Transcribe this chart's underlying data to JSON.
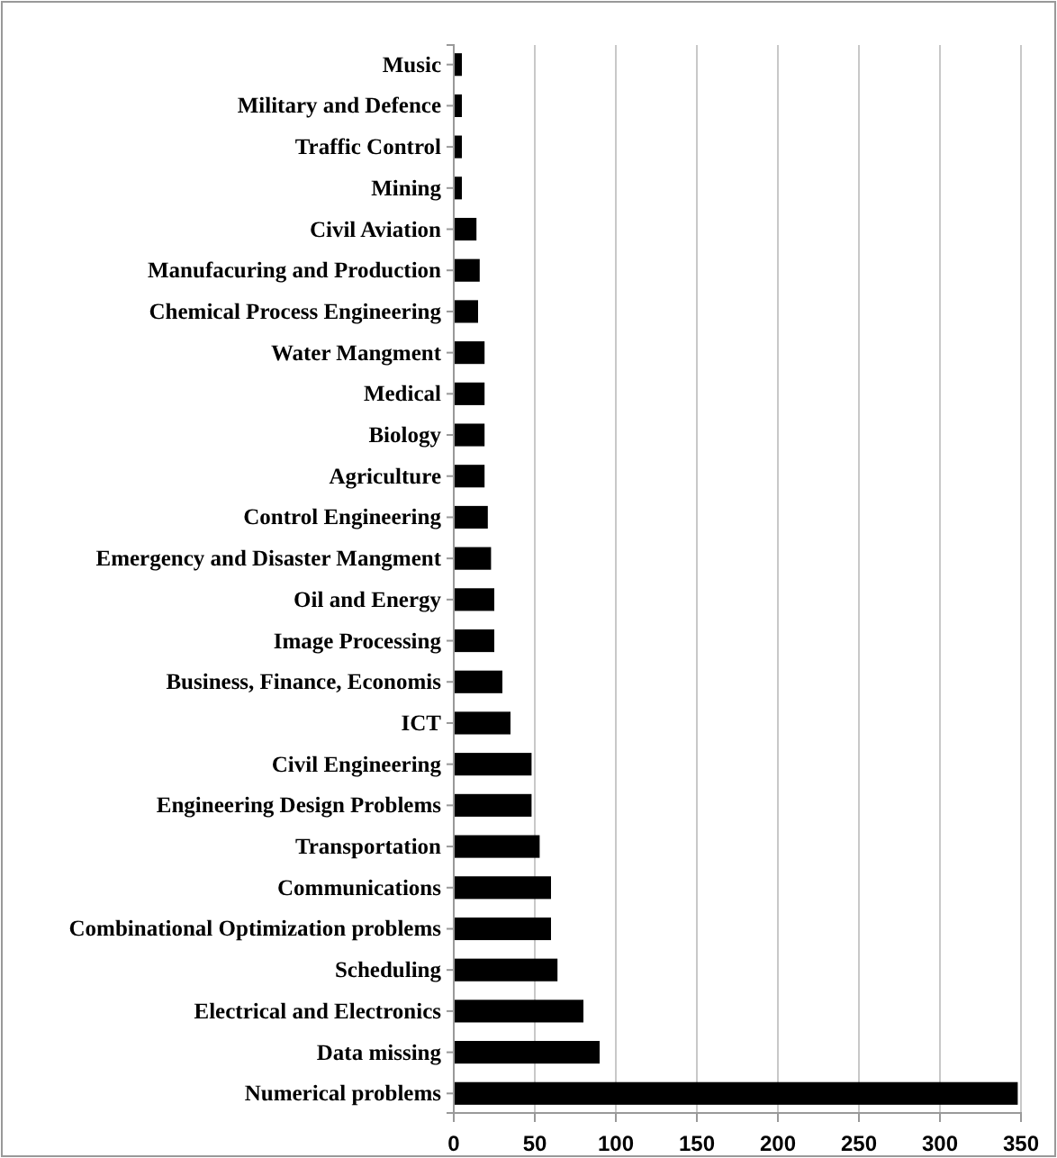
{
  "chart_data": {
    "type": "bar",
    "orientation": "horizontal",
    "categories": [
      "Music",
      "Military and Defence",
      "Traffic Control",
      "Mining",
      "Civil Aviation",
      "Manufacuring and Production",
      "Chemical Process Engineering",
      "Water Mangment",
      "Medical",
      "Biology",
      "Agriculture",
      "Control Engineering",
      "Emergency and Disaster Mangment",
      "Oil and Energy",
      "Image Processing",
      "Business, Finance, Economis",
      "ICT",
      "Civil Engineering",
      "Engineering Design Problems",
      "Transportation",
      "Communications",
      "Combinational Optimization problems",
      "Scheduling",
      "Electrical and Electronics",
      "Data missing",
      "Numerical problems"
    ],
    "values": [
      5,
      5,
      5,
      5,
      14,
      16,
      15,
      19,
      19,
      19,
      19,
      21,
      23,
      25,
      25,
      30,
      35,
      48,
      48,
      53,
      60,
      60,
      64,
      80,
      90,
      348
    ],
    "color": "#000000",
    "xlim": [
      0,
      350
    ],
    "xticks": [
      0,
      50,
      100,
      150,
      200,
      250,
      300,
      350
    ],
    "grid": "x"
  }
}
